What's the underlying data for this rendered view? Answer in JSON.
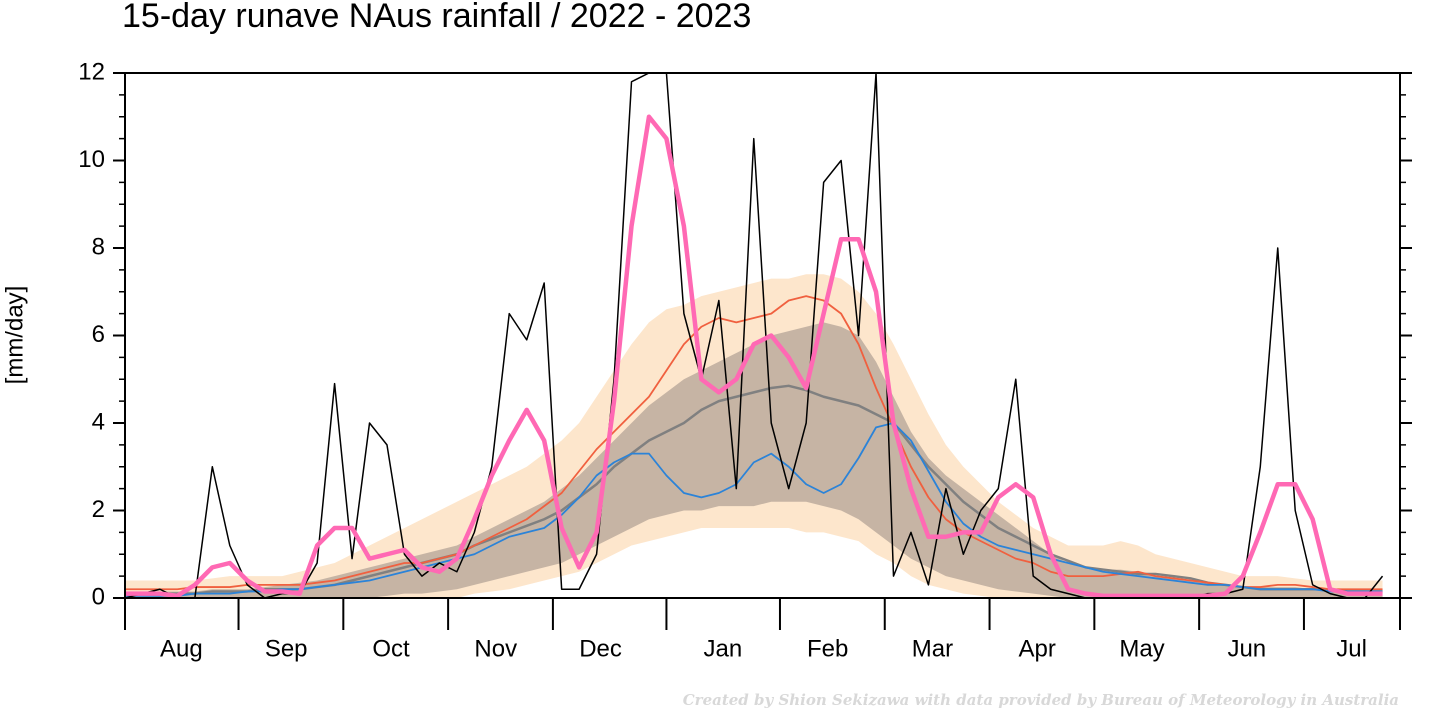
{
  "chart_data": {
    "type": "line",
    "title": "15-day runave NAus rainfall  /  2022 - 2023",
    "ylabel": "[mm/day]",
    "credit": "Created by Shion Sekizawa with data provided by Bureau of Meteorology in Australia",
    "ylim": [
      0,
      12
    ],
    "yticks": [
      0,
      2,
      4,
      6,
      8,
      10,
      12
    ],
    "categories": [
      null,
      null,
      null,
      "Aug",
      null,
      null,
      null,
      null,
      null,
      "Sep",
      null,
      null,
      null,
      null,
      null,
      "Oct",
      null,
      null,
      null,
      null,
      null,
      "Nov",
      null,
      null,
      null,
      null,
      null,
      "Dec",
      null,
      null,
      null,
      null,
      null,
      null,
      "Jan",
      null,
      null,
      null,
      null,
      null,
      "Feb",
      null,
      null,
      null,
      null,
      null,
      "Mar",
      null,
      null,
      null,
      null,
      null,
      "Apr",
      null,
      null,
      null,
      null,
      null,
      "May",
      null,
      null,
      null,
      null,
      null,
      "Jun",
      null,
      null,
      null,
      null,
      null,
      "Jul",
      null,
      null
    ],
    "bands": [
      {
        "color": "#fde6cc",
        "upper": [
          0.4,
          0.4,
          0.4,
          0.4,
          0.4,
          0.45,
          0.5,
          0.5,
          0.5,
          0.5,
          0.6,
          0.7,
          0.8,
          1.0,
          1.2,
          1.4,
          1.6,
          1.8,
          2.0,
          2.2,
          2.4,
          2.6,
          2.8,
          3.0,
          3.3,
          3.6,
          4.0,
          4.6,
          5.2,
          5.8,
          6.3,
          6.6,
          6.7,
          6.9,
          7.0,
          7.1,
          7.2,
          7.3,
          7.3,
          7.4,
          7.4,
          7.3,
          7.0,
          6.5,
          5.8,
          5.0,
          4.2,
          3.5,
          3.0,
          2.6,
          2.2,
          1.9,
          1.6,
          1.4,
          1.2,
          1.2,
          1.2,
          1.3,
          1.2,
          1.0,
          0.9,
          0.8,
          0.7,
          0.6,
          0.5,
          0.5,
          0.5,
          0.45,
          0.4,
          0.4,
          0.4,
          0.4,
          0.4
        ],
        "lower": [
          0,
          0,
          0,
          0,
          0,
          0,
          0,
          0,
          0,
          0,
          0,
          0,
          0,
          0,
          0,
          0,
          0,
          0,
          0,
          0,
          0.1,
          0.15,
          0.2,
          0.3,
          0.4,
          0.5,
          0.6,
          0.8,
          1.0,
          1.2,
          1.3,
          1.4,
          1.5,
          1.6,
          1.6,
          1.6,
          1.6,
          1.6,
          1.6,
          1.5,
          1.5,
          1.4,
          1.3,
          1.0,
          0.8,
          0.5,
          0.3,
          0.2,
          0.1,
          0.05,
          0,
          0,
          0,
          0,
          0,
          0,
          0,
          0,
          0,
          0,
          0,
          0,
          0,
          0,
          0,
          0,
          0,
          0,
          0,
          0,
          0,
          0,
          0
        ]
      },
      {
        "color": "#c6b4a4",
        "upper": [
          0.15,
          0.15,
          0.15,
          0.15,
          0.15,
          0.2,
          0.2,
          0.2,
          0.25,
          0.3,
          0.35,
          0.4,
          0.5,
          0.6,
          0.7,
          0.8,
          0.9,
          1.0,
          1.1,
          1.2,
          1.4,
          1.6,
          1.8,
          2.0,
          2.2,
          2.5,
          2.8,
          3.2,
          3.6,
          4.0,
          4.4,
          4.7,
          5.0,
          5.2,
          5.4,
          5.6,
          5.8,
          6.0,
          6.1,
          6.2,
          6.3,
          6.2,
          6.0,
          5.4,
          4.6,
          3.8,
          3.2,
          2.8,
          2.5,
          2.2,
          1.9,
          1.6,
          1.3,
          1.0,
          0.8,
          0.7,
          0.65,
          0.65,
          0.6,
          0.5,
          0.45,
          0.4,
          0.35,
          0.3,
          0.25,
          0.25,
          0.25,
          0.25,
          0.2,
          0.2,
          0.2,
          0.2,
          0.2
        ],
        "lower": [
          0,
          0,
          0,
          0,
          0,
          0,
          0,
          0,
          0,
          0,
          0,
          0,
          0,
          0,
          0,
          0.05,
          0.1,
          0.1,
          0.15,
          0.2,
          0.3,
          0.4,
          0.5,
          0.6,
          0.7,
          0.8,
          1.0,
          1.2,
          1.4,
          1.6,
          1.8,
          1.9,
          2.0,
          2.0,
          2.1,
          2.1,
          2.1,
          2.2,
          2.2,
          2.2,
          2.1,
          2.0,
          1.8,
          1.5,
          1.2,
          0.9,
          0.7,
          0.5,
          0.4,
          0.3,
          0.2,
          0.15,
          0.1,
          0.05,
          0,
          0,
          0,
          0,
          0,
          0,
          0,
          0,
          0,
          0,
          0,
          0,
          0,
          0,
          0,
          0,
          0,
          0,
          0
        ]
      }
    ],
    "series": [
      {
        "color": "#808080",
        "width": 2.5,
        "values": [
          0.1,
          0.1,
          0.1,
          0.1,
          0.1,
          0.15,
          0.15,
          0.15,
          0.2,
          0.2,
          0.2,
          0.25,
          0.3,
          0.4,
          0.5,
          0.6,
          0.7,
          0.8,
          0.9,
          1.0,
          1.2,
          1.35,
          1.5,
          1.65,
          1.8,
          2.0,
          2.3,
          2.6,
          3.0,
          3.3,
          3.6,
          3.8,
          4.0,
          4.3,
          4.5,
          4.6,
          4.7,
          4.8,
          4.85,
          4.75,
          4.6,
          4.5,
          4.4,
          4.2,
          4.0,
          3.5,
          3.0,
          2.6,
          2.2,
          1.9,
          1.6,
          1.4,
          1.2,
          1.0,
          0.85,
          0.7,
          0.65,
          0.6,
          0.55,
          0.55,
          0.5,
          0.45,
          0.35,
          0.3,
          0.25,
          0.2,
          0.2,
          0.2,
          0.2,
          0.2,
          0.15,
          0.15,
          0.15
        ]
      },
      {
        "color": "#f0603f",
        "width": 1.8,
        "values": [
          0.2,
          0.2,
          0.2,
          0.2,
          0.25,
          0.25,
          0.25,
          0.3,
          0.3,
          0.3,
          0.3,
          0.35,
          0.4,
          0.5,
          0.6,
          0.7,
          0.8,
          0.8,
          0.9,
          1.0,
          1.2,
          1.4,
          1.6,
          1.8,
          2.1,
          2.4,
          2.9,
          3.4,
          3.8,
          4.2,
          4.6,
          5.2,
          5.8,
          6.2,
          6.4,
          6.3,
          6.4,
          6.5,
          6.8,
          6.9,
          6.8,
          6.5,
          5.8,
          4.8,
          3.9,
          3.0,
          2.3,
          1.8,
          1.5,
          1.3,
          1.1,
          0.9,
          0.8,
          0.6,
          0.5,
          0.5,
          0.5,
          0.55,
          0.6,
          0.5,
          0.45,
          0.4,
          0.35,
          0.3,
          0.25,
          0.25,
          0.3,
          0.3,
          0.25,
          0.2,
          0.2,
          0.2,
          0.2
        ]
      },
      {
        "color": "#2b83d8",
        "width": 1.8,
        "values": [
          0.05,
          0.05,
          0.05,
          0.05,
          0.1,
          0.1,
          0.1,
          0.15,
          0.15,
          0.2,
          0.2,
          0.25,
          0.3,
          0.35,
          0.4,
          0.5,
          0.6,
          0.7,
          0.8,
          0.9,
          1.0,
          1.2,
          1.4,
          1.5,
          1.6,
          1.9,
          2.3,
          2.8,
          3.1,
          3.3,
          3.3,
          2.8,
          2.4,
          2.3,
          2.4,
          2.6,
          3.1,
          3.3,
          3.0,
          2.6,
          2.4,
          2.6,
          3.2,
          3.9,
          4.0,
          3.6,
          2.9,
          2.2,
          1.7,
          1.4,
          1.2,
          1.1,
          1.0,
          0.9,
          0.8,
          0.7,
          0.6,
          0.55,
          0.5,
          0.45,
          0.4,
          0.35,
          0.3,
          0.3,
          0.25,
          0.2,
          0.2,
          0.2,
          0.2,
          0.15,
          0.15,
          0.15,
          0.15
        ]
      },
      {
        "color": "#000000",
        "width": 1.5,
        "values": [
          0,
          0.1,
          0.2,
          0,
          0,
          3.0,
          1.2,
          0.3,
          0,
          0.1,
          0.1,
          0.8,
          4.9,
          0.9,
          4.0,
          3.5,
          1.0,
          0.5,
          0.8,
          0.6,
          1.5,
          3.0,
          6.5,
          5.9,
          7.2,
          0.2,
          0.2,
          1.0,
          5.0,
          11.8,
          12,
          12,
          6.5,
          5.0,
          6.8,
          2.5,
          10.5,
          4.0,
          2.5,
          4.0,
          9.5,
          10.0,
          6.0,
          12,
          0.5,
          1.5,
          0.3,
          2.5,
          1.0,
          2.0,
          2.5,
          5.0,
          0.5,
          0.2,
          0.1,
          0,
          0,
          0,
          0,
          0,
          0,
          0,
          0.1,
          0.1,
          0.2,
          3.0,
          8.0,
          2.0,
          0.3,
          0.1,
          0,
          0,
          0.5
        ]
      },
      {
        "color": "#ff69b4",
        "width": 4.5,
        "values": [
          0.1,
          0.1,
          0.1,
          0.05,
          0.3,
          0.7,
          0.8,
          0.4,
          0.15,
          0.15,
          0.1,
          1.2,
          1.6,
          1.6,
          0.9,
          1.0,
          1.1,
          0.7,
          0.6,
          0.9,
          1.8,
          2.8,
          3.6,
          4.3,
          3.6,
          1.6,
          0.7,
          1.5,
          4.5,
          8.5,
          11.0,
          10.5,
          8.5,
          5.0,
          4.7,
          5.0,
          5.8,
          6.0,
          5.5,
          4.8,
          6.5,
          8.2,
          8.2,
          7.0,
          4.0,
          2.5,
          1.4,
          1.4,
          1.5,
          1.5,
          2.3,
          2.6,
          2.3,
          1.0,
          0.2,
          0.1,
          0.05,
          0.05,
          0.05,
          0.05,
          0.05,
          0.05,
          0.05,
          0.1,
          0.5,
          1.5,
          2.6,
          2.6,
          1.8,
          0.2,
          0.1,
          0.1,
          0.1
        ]
      }
    ]
  }
}
